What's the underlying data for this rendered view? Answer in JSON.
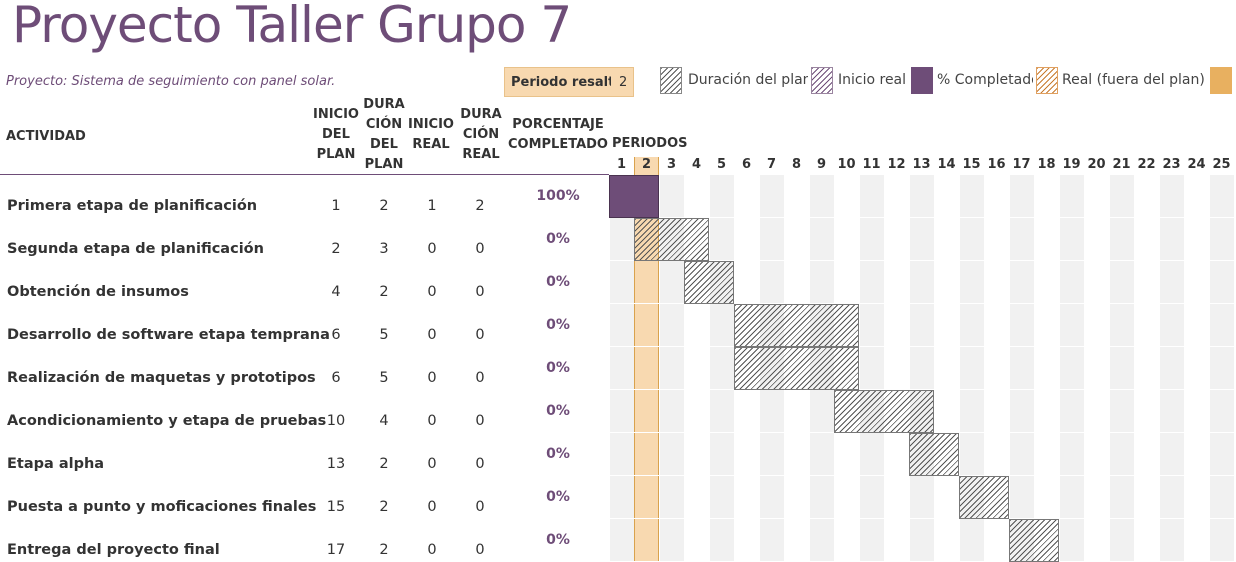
{
  "title": "Proyecto Taller Grupo 7",
  "project_line": "Proyecto: Sistema de seguimiento con panel solar.",
  "period_highlight": {
    "label": "Periodo resaltado:",
    "value": "2"
  },
  "legend": [
    {
      "label": "Duración del plan",
      "style": "hatch-gray"
    },
    {
      "label": "Inicio real",
      "style": "hatch-purple"
    },
    {
      "label": "% Completado",
      "style": "solid-purple"
    },
    {
      "label": "Real (fuera del plan)",
      "style": "hatch-orange"
    },
    {
      "label": "",
      "style": "solid-orange"
    }
  ],
  "headers": {
    "activity": "ACTIVIDAD",
    "plan_start": [
      "INICIO",
      "DEL",
      "PLAN"
    ],
    "plan_duration": [
      "DURA",
      "CIÓN",
      "DEL",
      "PLAN"
    ],
    "real_start": [
      "INICIO",
      "REAL"
    ],
    "real_duration": [
      "DURA",
      "CIÓN",
      "REAL"
    ],
    "percent": [
      "PORCENTAJE",
      "COMPLETADO"
    ],
    "periods": "PERIODOS"
  },
  "colors": {
    "accent": "#6E4D78",
    "highlight": "#F8D9B0",
    "column_shade": "#F1F1F1"
  },
  "chart_data": {
    "type": "gantt",
    "periods": [
      1,
      2,
      3,
      4,
      5,
      6,
      7,
      8,
      9,
      10,
      11,
      12,
      13,
      14,
      15,
      16,
      17,
      18,
      19,
      20,
      21,
      22,
      23,
      24,
      25
    ],
    "highlighted_period": 2,
    "activities": [
      {
        "name": "Primera etapa de planificación",
        "plan_start": 1,
        "plan_duration": 2,
        "real_start": 1,
        "real_duration": 2,
        "percent": "100%",
        "percent_value": 1.0
      },
      {
        "name": "Segunda etapa de planificación",
        "plan_start": 2,
        "plan_duration": 3,
        "real_start": 0,
        "real_duration": 0,
        "percent": "0%",
        "percent_value": 0
      },
      {
        "name": "Obtención de insumos",
        "plan_start": 4,
        "plan_duration": 2,
        "real_start": 0,
        "real_duration": 0,
        "percent": "0%",
        "percent_value": 0
      },
      {
        "name": "Desarrollo de software etapa temprana",
        "plan_start": 6,
        "plan_duration": 5,
        "real_start": 0,
        "real_duration": 0,
        "percent": "0%",
        "percent_value": 0
      },
      {
        "name": "Realización de maquetas y prototipos",
        "plan_start": 6,
        "plan_duration": 5,
        "real_start": 0,
        "real_duration": 0,
        "percent": "0%",
        "percent_value": 0
      },
      {
        "name": "Acondicionamiento y etapa de pruebas",
        "plan_start": 10,
        "plan_duration": 4,
        "real_start": 0,
        "real_duration": 0,
        "percent": "0%",
        "percent_value": 0
      },
      {
        "name": "Etapa alpha",
        "plan_start": 13,
        "plan_duration": 2,
        "real_start": 0,
        "real_duration": 0,
        "percent": "0%",
        "percent_value": 0
      },
      {
        "name": "Puesta a punto y moficaciones finales",
        "plan_start": 15,
        "plan_duration": 2,
        "real_start": 0,
        "real_duration": 0,
        "percent": "0%",
        "percent_value": 0
      },
      {
        "name": "Entrega del proyecto final",
        "plan_start": 17,
        "plan_duration": 2,
        "real_start": 0,
        "real_duration": 0,
        "percent": "0%",
        "percent_value": 0
      }
    ]
  }
}
